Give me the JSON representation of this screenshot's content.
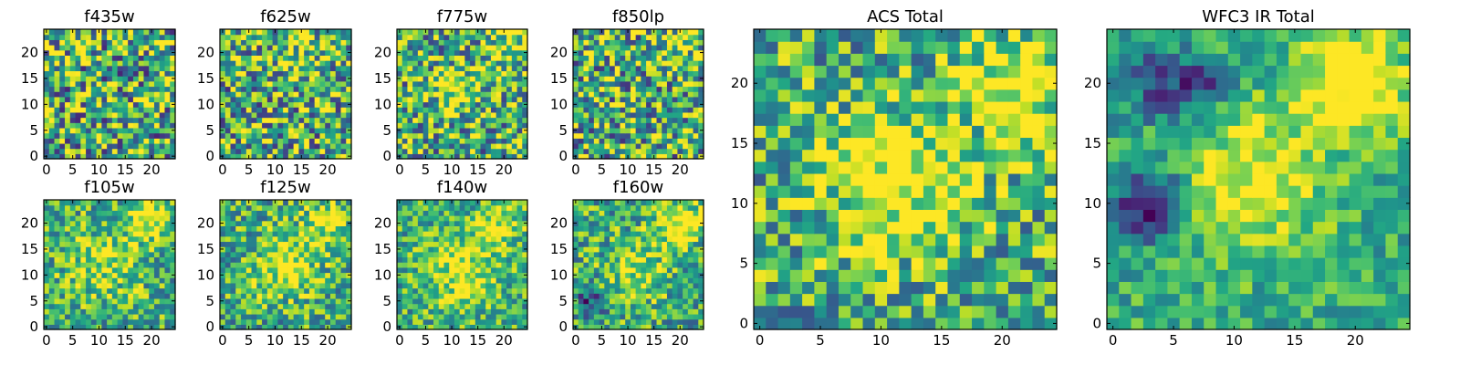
{
  "chart_data": [
    {
      "type": "heatmap",
      "title": "f435w",
      "x_ticks": [
        0,
        5,
        10,
        15,
        20
      ],
      "y_ticks": [
        0,
        5,
        10,
        15,
        20
      ],
      "xlim": [
        -0.5,
        24.5
      ],
      "ylim": [
        -0.5,
        24.5
      ],
      "grid_size": [
        25,
        25
      ],
      "colormap": "viridis",
      "pattern": {
        "noise": 0.85,
        "seed": 11,
        "blobs": []
      }
    },
    {
      "type": "heatmap",
      "title": "f625w",
      "x_ticks": [
        0,
        5,
        10,
        15,
        20
      ],
      "y_ticks": [
        0,
        5,
        10,
        15,
        20
      ],
      "xlim": [
        -0.5,
        24.5
      ],
      "ylim": [
        -0.5,
        24.5
      ],
      "grid_size": [
        25,
        25
      ],
      "colormap": "viridis",
      "pattern": {
        "noise": 0.8,
        "seed": 23,
        "blobs": [
          [
            15,
            20,
            4,
            0.2
          ]
        ]
      }
    },
    {
      "type": "heatmap",
      "title": "f775w",
      "x_ticks": [
        0,
        5,
        10,
        15,
        20
      ],
      "y_ticks": [
        0,
        5,
        10,
        15,
        20
      ],
      "xlim": [
        -0.5,
        24.5
      ],
      "ylim": [
        -0.5,
        24.5
      ],
      "grid_size": [
        25,
        25
      ],
      "colormap": "viridis",
      "pattern": {
        "noise": 0.75,
        "seed": 37,
        "blobs": [
          [
            11,
            13,
            3,
            0.35
          ],
          [
            21,
            21,
            3,
            0.3
          ]
        ]
      }
    },
    {
      "type": "heatmap",
      "title": "f850lp",
      "x_ticks": [
        0,
        5,
        10,
        15,
        20
      ],
      "y_ticks": [
        0,
        5,
        10,
        15,
        20
      ],
      "xlim": [
        -0.5,
        24.5
      ],
      "ylim": [
        -0.5,
        24.5
      ],
      "grid_size": [
        25,
        25
      ],
      "colormap": "viridis",
      "pattern": {
        "noise": 0.8,
        "seed": 41,
        "blobs": [
          [
            20,
            22,
            3,
            0.25
          ]
        ]
      }
    },
    {
      "type": "heatmap",
      "title": "f105w",
      "x_ticks": [
        0,
        5,
        10,
        15,
        20
      ],
      "y_ticks": [
        0,
        5,
        10,
        15,
        20
      ],
      "xlim": [
        -0.5,
        24.5
      ],
      "ylim": [
        -0.5,
        24.5
      ],
      "grid_size": [
        25,
        25
      ],
      "colormap": "viridis",
      "pattern": {
        "noise": 0.55,
        "seed": 53,
        "blobs": [
          [
            20,
            21,
            3,
            0.45
          ],
          [
            11,
            12,
            5,
            0.25
          ]
        ]
      }
    },
    {
      "type": "heatmap",
      "title": "f125w",
      "x_ticks": [
        0,
        5,
        10,
        15,
        20
      ],
      "y_ticks": [
        0,
        5,
        10,
        15,
        20
      ],
      "xlim": [
        -0.5,
        24.5
      ],
      "ylim": [
        -0.5,
        24.5
      ],
      "grid_size": [
        25,
        25
      ],
      "colormap": "viridis",
      "pattern": {
        "noise": 0.55,
        "seed": 67,
        "blobs": [
          [
            12,
            12,
            4,
            0.4
          ],
          [
            20,
            20,
            3,
            0.35
          ]
        ]
      }
    },
    {
      "type": "heatmap",
      "title": "f140w",
      "x_ticks": [
        0,
        5,
        10,
        15,
        20
      ],
      "y_ticks": [
        0,
        5,
        10,
        15,
        20
      ],
      "xlim": [
        -0.5,
        24.5
      ],
      "ylim": [
        -0.5,
        24.5
      ],
      "grid_size": [
        25,
        25
      ],
      "colormap": "viridis",
      "pattern": {
        "noise": 0.5,
        "seed": 71,
        "blobs": [
          [
            12,
            11,
            5,
            0.35
          ],
          [
            19,
            20,
            3,
            0.3
          ]
        ]
      }
    },
    {
      "type": "heatmap",
      "title": "f160w",
      "x_ticks": [
        0,
        5,
        10,
        15,
        20
      ],
      "y_ticks": [
        0,
        5,
        10,
        15,
        20
      ],
      "xlim": [
        -0.5,
        24.5
      ],
      "ylim": [
        -0.5,
        24.5
      ],
      "grid_size": [
        25,
        25
      ],
      "colormap": "viridis",
      "pattern": {
        "noise": 0.55,
        "seed": 83,
        "blobs": [
          [
            20,
            20,
            3,
            0.5
          ],
          [
            12,
            11,
            4,
            0.3
          ],
          [
            3,
            5,
            2,
            -0.4
          ]
        ]
      }
    },
    {
      "type": "heatmap",
      "title": "ACS Total",
      "x_ticks": [
        0,
        5,
        10,
        15,
        20
      ],
      "y_ticks": [
        0,
        5,
        10,
        15,
        20
      ],
      "xlim": [
        -0.5,
        24.5
      ],
      "ylim": [
        -0.5,
        24.5
      ],
      "grid_size": [
        25,
        25
      ],
      "colormap": "viridis",
      "pattern": {
        "noise": 0.6,
        "seed": 97,
        "blobs": [
          [
            11,
            12,
            4,
            0.45
          ],
          [
            21,
            20,
            3,
            0.45
          ]
        ]
      }
    },
    {
      "type": "heatmap",
      "title": "WFC3 IR Total",
      "x_ticks": [
        0,
        5,
        10,
        15,
        20
      ],
      "y_ticks": [
        0,
        5,
        10,
        15,
        20
      ],
      "xlim": [
        -0.5,
        24.5
      ],
      "ylim": [
        -0.5,
        24.5
      ],
      "grid_size": [
        25,
        25
      ],
      "colormap": "viridis",
      "pattern": {
        "noise": 0.35,
        "seed": 101,
        "blobs": [
          [
            20,
            20,
            3,
            0.6
          ],
          [
            12,
            12,
            4,
            0.4
          ],
          [
            3,
            10,
            2,
            -0.6
          ],
          [
            4,
            20,
            2,
            -0.45
          ],
          [
            8,
            20,
            1.5,
            -0.4
          ]
        ]
      }
    }
  ]
}
